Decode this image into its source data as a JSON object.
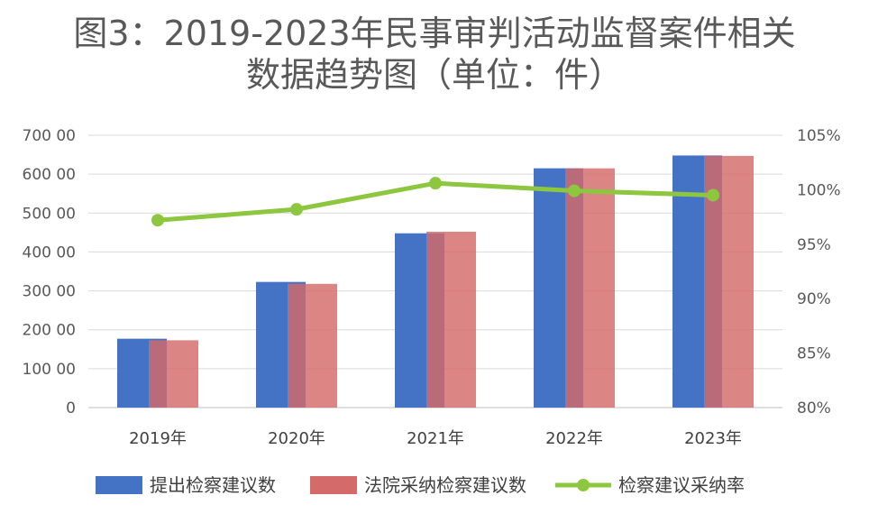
{
  "chart_data": {
    "type": "bar",
    "title_line1": "图3：2019-2023年民事审判活动监督案件相关",
    "title_line2": "数据趋势图（单位：件）",
    "categories": [
      "2019年",
      "2020年",
      "2021年",
      "2022年",
      "2023年"
    ],
    "series": [
      {
        "name": "提出检察建议数",
        "type": "bar",
        "color": "#4472C4",
        "values": [
          17700,
          32300,
          44800,
          61500,
          64800
        ]
      },
      {
        "name": "法院采纳检察建议数",
        "type": "bar",
        "color": "#D46A6A",
        "values": [
          17300,
          31800,
          45200,
          61500,
          64700
        ]
      },
      {
        "name": "检察建议采纳率",
        "type": "line",
        "axis": "right",
        "color": "#8DC63F",
        "values": [
          97.2,
          98.2,
          100.6,
          99.9,
          99.5
        ]
      }
    ],
    "y_left": {
      "min": 0,
      "max": 70000,
      "step": 10000,
      "tick_labels": [
        "0",
        "100 00",
        "200 00",
        "300 00",
        "400 00",
        "500 00",
        "600 00",
        "700 00"
      ]
    },
    "y_right": {
      "min": 80,
      "max": 105,
      "step": 5,
      "tick_labels": [
        "80%",
        "85%",
        "90%",
        "95%",
        "100%",
        "105%"
      ]
    },
    "grid": true,
    "legend_position": "bottom"
  }
}
